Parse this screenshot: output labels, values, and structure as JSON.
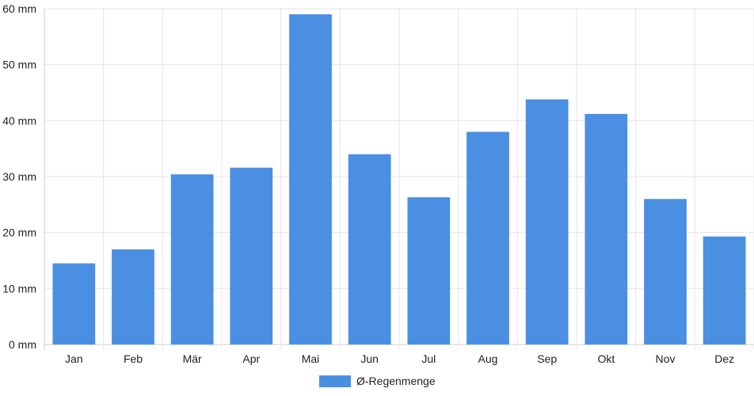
{
  "chart_data": {
    "type": "bar",
    "categories": [
      "Jan",
      "Feb",
      "Mär",
      "Apr",
      "Mai",
      "Jun",
      "Jul",
      "Aug",
      "Sep",
      "Okt",
      "Nov",
      "Dez"
    ],
    "series": [
      {
        "name": "Ø-Regenmenge",
        "values": [
          14.5,
          17.0,
          30.4,
          31.6,
          59.0,
          34.0,
          26.3,
          38.0,
          43.8,
          41.2,
          26.0,
          19.3
        ],
        "color": "#4a8fe2"
      }
    ],
    "ylim": [
      0,
      60
    ],
    "yticks": [
      0,
      10,
      20,
      30,
      40,
      50,
      60
    ],
    "yunit": "mm",
    "grid": true,
    "legend_position": "bottom",
    "colors": {
      "grid": "#e6e6e6",
      "axis": "#cccccc",
      "text": "#222222"
    }
  }
}
